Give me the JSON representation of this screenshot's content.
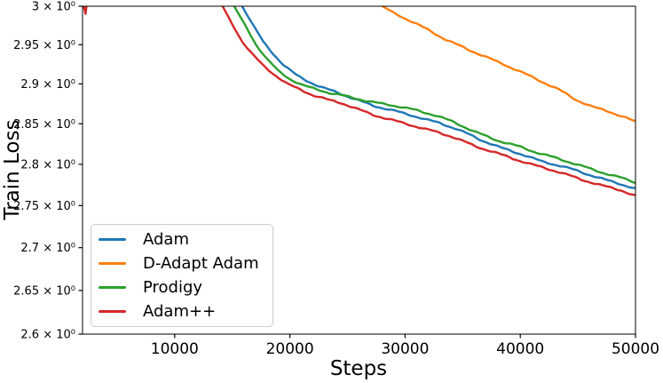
{
  "chart_data": {
    "type": "line",
    "title": "",
    "xlabel": "Steps",
    "ylabel": "Train Loss",
    "grid": false,
    "legend_position": "lower left",
    "x_axis": {
      "min": 2000,
      "max": 50000,
      "ticks": [
        10000,
        20000,
        30000,
        40000,
        50000
      ],
      "tick_labels": [
        "10000",
        "20000",
        "30000",
        "40000",
        "50000"
      ]
    },
    "y_axis": {
      "scale": "log",
      "min": 2.6,
      "max": 3.0,
      "ticks": [
        3.0,
        2.95,
        2.9,
        2.85,
        2.8,
        2.75,
        2.7,
        2.65,
        2.6
      ],
      "tick_labels": [
        "3 × 10⁰",
        "2.95 × 10⁰",
        "2.9 × 10⁰",
        "2.85 × 10⁰",
        "2.8 × 10⁰",
        "2.75 × 10⁰",
        "2.7 × 10⁰",
        "2.65 × 10⁰",
        "2.6 × 10⁰"
      ]
    },
    "series": [
      {
        "name": "Adam",
        "color": "#1f77b4",
        "segments": [
          [
            [
              15400,
              3.028
            ],
            [
              15850,
              3.0
            ],
            [
              16770,
              2.976
            ],
            [
              17690,
              2.953
            ],
            [
              18620,
              2.937
            ],
            [
              19540,
              2.923
            ],
            [
              20620,
              2.911
            ],
            [
              21690,
              2.903
            ],
            [
              22770,
              2.896
            ],
            [
              24150,
              2.889
            ],
            [
              25690,
              2.88
            ],
            [
              27230,
              2.872
            ],
            [
              29150,
              2.866
            ],
            [
              31080,
              2.859
            ],
            [
              33000,
              2.851
            ],
            [
              34540,
              2.843
            ],
            [
              36460,
              2.83
            ],
            [
              38380,
              2.82
            ],
            [
              40310,
              2.812
            ],
            [
              41850,
              2.804
            ],
            [
              43770,
              2.797
            ],
            [
              45690,
              2.788
            ],
            [
              47620,
              2.78
            ],
            [
              48770,
              2.776
            ],
            [
              50000,
              2.771
            ]
          ]
        ]
      },
      {
        "name": "D-Adapt Adam",
        "color": "#ff7f0e",
        "segments": [
          [
            [
              27500,
              3.018
            ],
            [
              28000,
              3.0
            ],
            [
              29390,
              2.988
            ],
            [
              30770,
              2.978
            ],
            [
              32150,
              2.968
            ],
            [
              33540,
              2.957
            ],
            [
              34920,
              2.948
            ],
            [
              36310,
              2.939
            ],
            [
              37690,
              2.93
            ],
            [
              39080,
              2.921
            ],
            [
              40460,
              2.912
            ],
            [
              41850,
              2.903
            ],
            [
              43380,
              2.893
            ],
            [
              44920,
              2.88
            ],
            [
              46310,
              2.871
            ],
            [
              47690,
              2.865
            ],
            [
              48770,
              2.859
            ],
            [
              50000,
              2.852
            ]
          ]
        ]
      },
      {
        "name": "Prodigy",
        "color": "#2ca02c",
        "segments": [
          [
            [
              14700,
              3.028
            ],
            [
              15150,
              3.0
            ],
            [
              16080,
              2.976
            ],
            [
              17080,
              2.95
            ],
            [
              18000,
              2.932
            ],
            [
              19000,
              2.917
            ],
            [
              20080,
              2.906
            ],
            [
              21150,
              2.898
            ],
            [
              22310,
              2.893
            ],
            [
              23690,
              2.887
            ],
            [
              25310,
              2.883
            ],
            [
              26850,
              2.878
            ],
            [
              28770,
              2.874
            ],
            [
              30690,
              2.868
            ],
            [
              32620,
              2.86
            ],
            [
              34150,
              2.852
            ],
            [
              36080,
              2.84
            ],
            [
              38000,
              2.83
            ],
            [
              39920,
              2.822
            ],
            [
              41460,
              2.814
            ],
            [
              43380,
              2.806
            ],
            [
              45310,
              2.798
            ],
            [
              47230,
              2.79
            ],
            [
              48770,
              2.784
            ],
            [
              50000,
              2.778
            ]
          ]
        ]
      },
      {
        "name": "Adam++",
        "color": "#d62728",
        "segments": [
          [
            [
              2080,
              3.002
            ],
            [
              2260,
              2.99
            ],
            [
              2440,
              3.012
            ]
          ],
          [
            [
              13700,
              3.028
            ],
            [
              14150,
              3.0
            ],
            [
              15000,
              2.976
            ],
            [
              15850,
              2.954
            ],
            [
              16770,
              2.937
            ],
            [
              17770,
              2.922
            ],
            [
              18770,
              2.911
            ],
            [
              19850,
              2.9
            ],
            [
              20920,
              2.893
            ],
            [
              22000,
              2.886
            ],
            [
              23230,
              2.88
            ],
            [
              24540,
              2.875
            ],
            [
              25850,
              2.868
            ],
            [
              27230,
              2.861
            ],
            [
              28920,
              2.855
            ],
            [
              30690,
              2.848
            ],
            [
              32620,
              2.84
            ],
            [
              34150,
              2.833
            ],
            [
              36080,
              2.822
            ],
            [
              38000,
              2.814
            ],
            [
              39920,
              2.805
            ],
            [
              41460,
              2.798
            ],
            [
              43380,
              2.79
            ],
            [
              45310,
              2.781
            ],
            [
              47230,
              2.774
            ],
            [
              48770,
              2.769
            ],
            [
              50000,
              2.762
            ]
          ]
        ]
      }
    ]
  }
}
